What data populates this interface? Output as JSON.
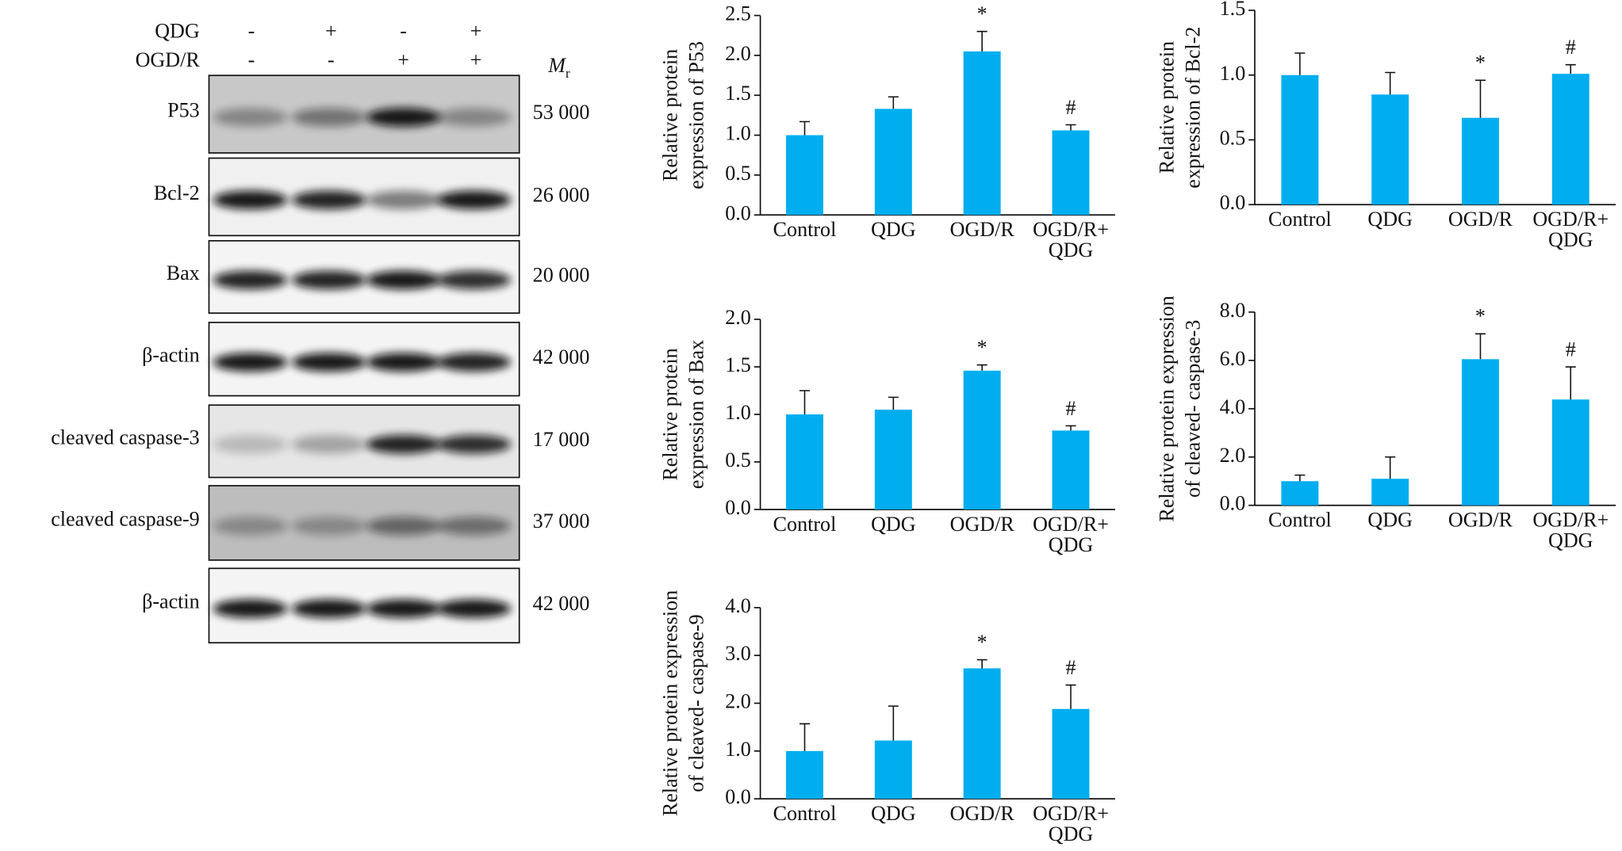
{
  "chart_data": [
    {
      "type": "bar",
      "ylabel": [
        "Relative protein",
        "expression of P53"
      ],
      "categories": [
        "Control",
        "QDG",
        "OGD/R",
        "OGD/R+\nQDG"
      ],
      "values": [
        1.0,
        1.33,
        2.05,
        1.06
      ],
      "errors": [
        0.17,
        0.15,
        0.25,
        0.07
      ],
      "markers": [
        null,
        null,
        "*",
        "#"
      ],
      "color": "#00aeef",
      "ylim": [
        0,
        2.5
      ],
      "yticks": [
        {
          "value": 0,
          "label": "0.0"
        },
        0.5,
        {
          "value": 1,
          "label": "1.0"
        },
        1.5,
        {
          "value": 2,
          "label": "2.0"
        },
        2.5
      ]
    },
    {
      "type": "bar",
      "ylabel": [
        "Relative protein",
        "expression of Bcl-2"
      ],
      "categories": [
        "Control",
        "QDG",
        "OGD/R",
        "OGD/R+\nQDG"
      ],
      "values": [
        1.0,
        0.85,
        0.67,
        1.01
      ],
      "errors": [
        0.17,
        0.17,
        0.29,
        0.07
      ],
      "markers": [
        null,
        null,
        "*",
        "#"
      ],
      "color": "#00aeef",
      "ylim": [
        0,
        1.5
      ],
      "yticks": [
        {
          "value": 0,
          "label": "0.0"
        },
        0.5,
        {
          "value": 1,
          "label": "1.0"
        },
        1.5
      ]
    },
    {
      "type": "bar",
      "ylabel": [
        "Relative protein",
        "expression of Bax"
      ],
      "categories": [
        "Control",
        "QDG",
        "OGD/R",
        "OGD/R+\nQDG"
      ],
      "values": [
        1.0,
        1.05,
        1.46,
        0.83
      ],
      "errors": [
        0.25,
        0.13,
        0.06,
        0.05
      ],
      "markers": [
        null,
        null,
        "*",
        "#"
      ],
      "color": "#00aeef",
      "ylim": [
        0,
        2
      ],
      "yticks": [
        {
          "value": 0,
          "label": "0.0"
        },
        0.5,
        {
          "value": 1,
          "label": "1.0"
        },
        1.5,
        {
          "value": 2,
          "label": "2.0"
        }
      ]
    },
    {
      "type": "bar",
      "ylabel": [
        "Relative protein expression",
        "of cleaved- caspase-3"
      ],
      "categories": [
        "Control",
        "QDG",
        "OGD/R",
        "OGD/R+\nQDG"
      ],
      "values": [
        1.0,
        1.1,
        6.05,
        4.38
      ],
      "errors": [
        0.25,
        0.9,
        1.05,
        1.35
      ],
      "markers": [
        null,
        null,
        "*",
        "#"
      ],
      "color": "#00aeef",
      "ylim": [
        0,
        8
      ],
      "yticks": [
        {
          "value": 0,
          "label": "0.0"
        },
        {
          "value": 2,
          "label": "2.0"
        },
        {
          "value": 4,
          "label": "4.0"
        },
        {
          "value": 6,
          "label": "6.0"
        },
        {
          "value": 8,
          "label": "8.0"
        }
      ]
    },
    {
      "type": "bar",
      "ylabel": [
        "Relative protein expression",
        "of cleaved- caspase-9"
      ],
      "categories": [
        "Control",
        "QDG",
        "OGD/R",
        "OGD/R+\nQDG"
      ],
      "values": [
        1.0,
        1.22,
        2.73,
        1.88
      ],
      "errors": [
        0.57,
        0.72,
        0.18,
        0.5
      ],
      "markers": [
        null,
        null,
        "*",
        "#"
      ],
      "color": "#00aeef",
      "ylim": [
        0,
        4
      ],
      "yticks": [
        {
          "value": 0,
          "label": "0.0"
        },
        {
          "value": 1,
          "label": "1.0"
        },
        {
          "value": 2,
          "label": "2.0"
        },
        {
          "value": 3,
          "label": "3.0"
        },
        {
          "value": 4,
          "label": "4.0"
        }
      ]
    }
  ],
  "blot": {
    "conditions": [
      {
        "label": "QDG",
        "signs": [
          "-",
          "+",
          "-",
          "+"
        ]
      },
      {
        "label": "OGD/R",
        "signs": [
          "-",
          "-",
          "+",
          "+"
        ]
      }
    ],
    "mr_label": [
      "M",
      "r"
    ],
    "rows": [
      {
        "label": "P53",
        "mr": "53 000"
      },
      {
        "label": "Bcl-2",
        "mr": "26 000"
      },
      {
        "label": "Bax",
        "mr": "20 000"
      },
      {
        "label": "β-actin",
        "mr": "42 000"
      },
      {
        "label": "cleaved caspase-3",
        "mr": "17 000"
      },
      {
        "label": "cleaved caspase-9",
        "mr": "37 000"
      },
      {
        "label": "β-actin",
        "mr": "42 000"
      }
    ]
  }
}
